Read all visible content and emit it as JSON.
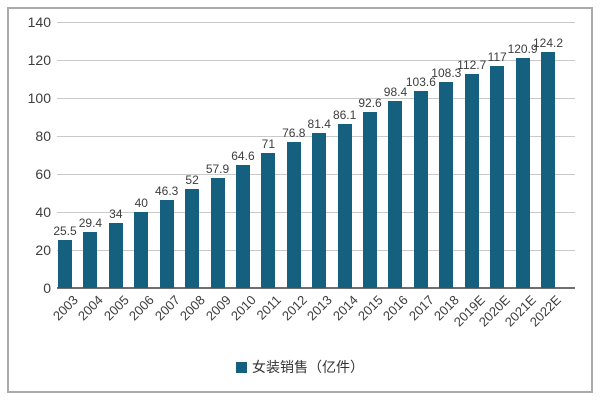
{
  "chart_data": {
    "type": "bar",
    "title": "",
    "legend": "女装销售（亿件）",
    "legend_position": "bottom",
    "categories": [
      "2003",
      "2004",
      "2005",
      "2006",
      "2007",
      "2008",
      "2009",
      "2010",
      "2011",
      "2012",
      "2013",
      "2014",
      "2015",
      "2016",
      "2017",
      "2018",
      "2019E",
      "2020E",
      "2021E",
      "2022E"
    ],
    "values": [
      25.5,
      29.4,
      34,
      40,
      46.3,
      52,
      57.9,
      64.6,
      71,
      76.8,
      81.4,
      86.1,
      92.6,
      98.4,
      103.6,
      108.3,
      112.7,
      117,
      120.9,
      124.2
    ],
    "xlabel": "",
    "ylabel": "",
    "ylim": [
      0,
      140
    ],
    "yticks": [
      0,
      20,
      40,
      60,
      80,
      100,
      120,
      140
    ],
    "grid": true,
    "colors": {
      "bar": "#15607E",
      "gridline": "#C9C9C9",
      "axis_line": "#6E6E6E",
      "text": "#3D3D3D",
      "frame_border": "#ABABAB",
      "background": "#FFFFFF"
    }
  }
}
